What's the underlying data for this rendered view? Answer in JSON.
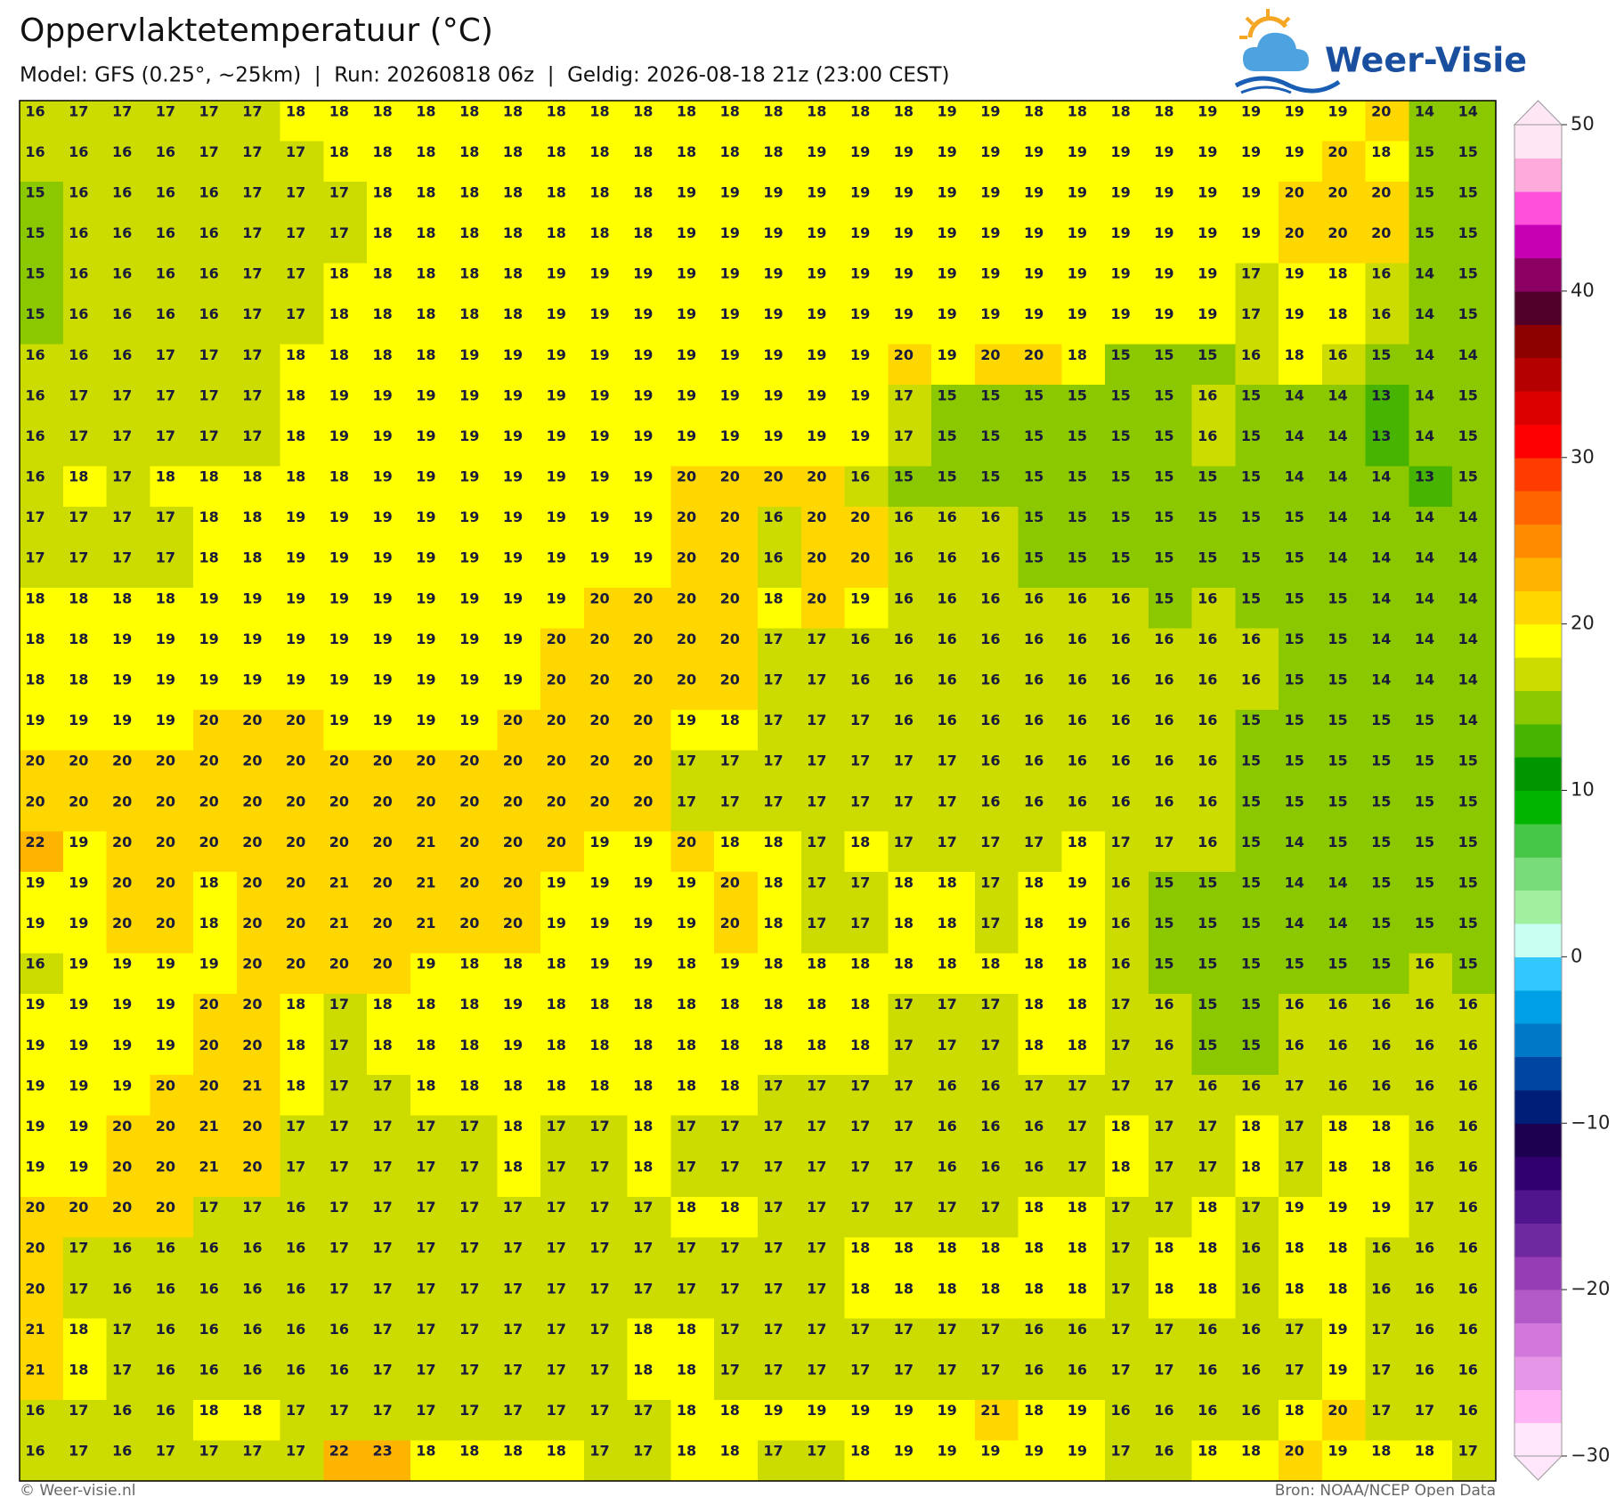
{
  "header": {
    "title": "Oppervlaktetemperatuur (°C)",
    "subtitle": "Model: GFS (0.25°, ~25km)  |  Run: 20260818 06z  |  Geldig: 2026-08-18 21z (23:00 CEST)",
    "logo": "Weer-Visie"
  },
  "map": {
    "rows": [
      [
        16,
        17,
        17,
        17,
        17,
        17,
        18,
        18,
        18,
        18,
        18,
        18,
        18,
        18,
        18,
        18,
        18,
        18,
        18,
        18,
        18,
        19,
        19,
        18,
        18,
        18,
        18,
        19,
        19,
        19,
        19,
        20,
        14,
        14
      ],
      [
        16,
        16,
        16,
        16,
        17,
        17,
        17,
        18,
        18,
        18,
        18,
        18,
        18,
        18,
        18,
        18,
        18,
        18,
        19,
        19,
        19,
        19,
        19,
        19,
        19,
        19,
        19,
        19,
        19,
        19,
        20,
        18,
        15,
        15
      ],
      [
        15,
        16,
        16,
        16,
        16,
        17,
        17,
        17,
        18,
        18,
        18,
        18,
        18,
        18,
        18,
        19,
        19,
        19,
        19,
        19,
        19,
        19,
        19,
        19,
        19,
        19,
        19,
        19,
        19,
        20,
        20,
        20,
        15,
        15
      ],
      [
        15,
        16,
        16,
        16,
        16,
        17,
        17,
        17,
        18,
        18,
        18,
        18,
        18,
        18,
        18,
        19,
        19,
        19,
        19,
        19,
        19,
        19,
        19,
        19,
        19,
        19,
        19,
        19,
        19,
        20,
        20,
        20,
        15,
        15
      ],
      [
        15,
        16,
        16,
        16,
        16,
        17,
        17,
        18,
        18,
        18,
        18,
        18,
        19,
        19,
        19,
        19,
        19,
        19,
        19,
        19,
        19,
        19,
        19,
        19,
        19,
        19,
        19,
        19,
        17,
        19,
        18,
        16,
        14,
        15
      ],
      [
        15,
        16,
        16,
        16,
        16,
        17,
        17,
        18,
        18,
        18,
        18,
        18,
        19,
        19,
        19,
        19,
        19,
        19,
        19,
        19,
        19,
        19,
        19,
        19,
        19,
        19,
        19,
        19,
        17,
        19,
        18,
        16,
        14,
        15
      ],
      [
        16,
        16,
        16,
        17,
        17,
        17,
        18,
        18,
        18,
        18,
        19,
        19,
        19,
        19,
        19,
        19,
        19,
        19,
        19,
        19,
        20,
        19,
        20,
        20,
        18,
        15,
        15,
        15,
        16,
        18,
        16,
        15,
        14,
        14
      ],
      [
        16,
        17,
        17,
        17,
        17,
        17,
        18,
        19,
        19,
        19,
        19,
        19,
        19,
        19,
        19,
        19,
        19,
        19,
        19,
        19,
        17,
        15,
        15,
        15,
        15,
        15,
        15,
        16,
        15,
        14,
        14,
        13,
        14,
        15
      ],
      [
        16,
        17,
        17,
        17,
        17,
        17,
        18,
        19,
        19,
        19,
        19,
        19,
        19,
        19,
        19,
        19,
        19,
        19,
        19,
        19,
        17,
        15,
        15,
        15,
        15,
        15,
        15,
        16,
        15,
        14,
        14,
        13,
        14,
        15
      ],
      [
        16,
        18,
        17,
        18,
        18,
        18,
        18,
        18,
        19,
        19,
        19,
        19,
        19,
        19,
        19,
        20,
        20,
        20,
        20,
        16,
        15,
        15,
        15,
        15,
        15,
        15,
        15,
        15,
        15,
        14,
        14,
        14,
        13,
        15
      ],
      [
        17,
        17,
        17,
        17,
        18,
        18,
        19,
        19,
        19,
        19,
        19,
        19,
        19,
        19,
        19,
        20,
        20,
        16,
        20,
        20,
        16,
        16,
        16,
        15,
        15,
        15,
        15,
        15,
        15,
        15,
        14,
        14,
        14,
        14
      ],
      [
        17,
        17,
        17,
        17,
        18,
        18,
        19,
        19,
        19,
        19,
        19,
        19,
        19,
        19,
        19,
        20,
        20,
        16,
        20,
        20,
        16,
        16,
        16,
        15,
        15,
        15,
        15,
        15,
        15,
        15,
        14,
        14,
        14,
        14
      ],
      [
        18,
        18,
        18,
        18,
        19,
        19,
        19,
        19,
        19,
        19,
        19,
        19,
        19,
        20,
        20,
        20,
        20,
        18,
        20,
        19,
        16,
        16,
        16,
        16,
        16,
        16,
        15,
        16,
        15,
        15,
        15,
        14,
        14,
        14
      ],
      [
        18,
        18,
        19,
        19,
        19,
        19,
        19,
        19,
        19,
        19,
        19,
        19,
        20,
        20,
        20,
        20,
        20,
        17,
        17,
        16,
        16,
        16,
        16,
        16,
        16,
        16,
        16,
        16,
        16,
        15,
        15,
        14,
        14,
        14
      ],
      [
        18,
        18,
        19,
        19,
        19,
        19,
        19,
        19,
        19,
        19,
        19,
        19,
        20,
        20,
        20,
        20,
        20,
        17,
        17,
        16,
        16,
        16,
        16,
        16,
        16,
        16,
        16,
        16,
        16,
        15,
        15,
        14,
        14,
        14
      ],
      [
        19,
        19,
        19,
        19,
        20,
        20,
        20,
        19,
        19,
        19,
        19,
        20,
        20,
        20,
        20,
        19,
        18,
        17,
        17,
        17,
        16,
        16,
        16,
        16,
        16,
        16,
        16,
        16,
        15,
        15,
        15,
        15,
        15,
        14
      ],
      [
        20,
        20,
        20,
        20,
        20,
        20,
        20,
        20,
        20,
        20,
        20,
        20,
        20,
        20,
        20,
        17,
        17,
        17,
        17,
        17,
        17,
        17,
        16,
        16,
        16,
        16,
        16,
        16,
        15,
        15,
        15,
        15,
        15,
        15
      ],
      [
        20,
        20,
        20,
        20,
        20,
        20,
        20,
        20,
        20,
        20,
        20,
        20,
        20,
        20,
        20,
        17,
        17,
        17,
        17,
        17,
        17,
        17,
        16,
        16,
        16,
        16,
        16,
        16,
        15,
        15,
        15,
        15,
        15,
        15
      ],
      [
        22,
        19,
        20,
        20,
        20,
        20,
        20,
        20,
        20,
        21,
        20,
        20,
        20,
        19,
        19,
        20,
        18,
        18,
        17,
        18,
        17,
        17,
        17,
        17,
        18,
        17,
        17,
        16,
        15,
        14,
        15,
        15,
        15,
        15
      ],
      [
        19,
        19,
        20,
        20,
        18,
        20,
        20,
        21,
        20,
        21,
        20,
        20,
        19,
        19,
        19,
        19,
        20,
        18,
        17,
        17,
        18,
        18,
        17,
        18,
        19,
        16,
        15,
        15,
        15,
        14,
        14,
        15,
        15,
        15
      ],
      [
        19,
        19,
        20,
        20,
        18,
        20,
        20,
        21,
        20,
        21,
        20,
        20,
        19,
        19,
        19,
        19,
        20,
        18,
        17,
        17,
        18,
        18,
        17,
        18,
        19,
        16,
        15,
        15,
        15,
        14,
        14,
        15,
        15,
        15
      ],
      [
        16,
        19,
        19,
        19,
        19,
        20,
        20,
        20,
        20,
        19,
        18,
        18,
        18,
        19,
        19,
        18,
        19,
        18,
        18,
        18,
        18,
        18,
        18,
        18,
        18,
        16,
        15,
        15,
        15,
        15,
        15,
        15,
        16,
        15
      ],
      [
        19,
        19,
        19,
        19,
        20,
        20,
        18,
        17,
        18,
        18,
        18,
        19,
        18,
        18,
        18,
        18,
        18,
        18,
        18,
        18,
        17,
        17,
        17,
        18,
        18,
        17,
        16,
        15,
        15,
        16,
        16,
        16,
        16,
        16
      ],
      [
        19,
        19,
        19,
        19,
        20,
        20,
        18,
        17,
        18,
        18,
        18,
        19,
        18,
        18,
        18,
        18,
        18,
        18,
        18,
        18,
        17,
        17,
        17,
        18,
        18,
        17,
        16,
        15,
        15,
        16,
        16,
        16,
        16,
        16
      ],
      [
        19,
        19,
        19,
        20,
        20,
        21,
        18,
        17,
        17,
        18,
        18,
        18,
        18,
        18,
        18,
        18,
        18,
        17,
        17,
        17,
        17,
        16,
        16,
        17,
        17,
        17,
        17,
        16,
        16,
        17,
        16,
        16,
        16,
        16
      ],
      [
        19,
        19,
        20,
        20,
        21,
        20,
        17,
        17,
        17,
        17,
        17,
        18,
        17,
        17,
        18,
        17,
        17,
        17,
        17,
        17,
        17,
        16,
        16,
        16,
        17,
        18,
        17,
        17,
        18,
        17,
        18,
        18,
        16,
        16
      ],
      [
        19,
        19,
        20,
        20,
        21,
        20,
        17,
        17,
        17,
        17,
        17,
        18,
        17,
        17,
        18,
        17,
        17,
        17,
        17,
        17,
        17,
        16,
        16,
        16,
        17,
        18,
        17,
        17,
        18,
        17,
        18,
        18,
        16,
        16
      ],
      [
        20,
        20,
        20,
        20,
        17,
        17,
        16,
        17,
        17,
        17,
        17,
        17,
        17,
        17,
        17,
        18,
        18,
        17,
        17,
        17,
        17,
        17,
        17,
        18,
        18,
        17,
        17,
        18,
        17,
        19,
        19,
        19,
        17,
        16
      ],
      [
        20,
        17,
        16,
        16,
        16,
        16,
        16,
        17,
        17,
        17,
        17,
        17,
        17,
        17,
        17,
        17,
        17,
        17,
        17,
        18,
        18,
        18,
        18,
        18,
        18,
        17,
        18,
        18,
        16,
        18,
        18,
        16,
        16,
        16
      ],
      [
        20,
        17,
        16,
        16,
        16,
        16,
        16,
        17,
        17,
        17,
        17,
        17,
        17,
        17,
        17,
        17,
        17,
        17,
        17,
        18,
        18,
        18,
        18,
        18,
        18,
        17,
        18,
        18,
        16,
        18,
        18,
        16,
        16,
        16
      ],
      [
        21,
        18,
        17,
        16,
        16,
        16,
        16,
        16,
        17,
        17,
        17,
        17,
        17,
        17,
        18,
        18,
        17,
        17,
        17,
        17,
        17,
        17,
        17,
        16,
        16,
        17,
        17,
        16,
        16,
        17,
        19,
        17,
        16,
        16
      ],
      [
        21,
        18,
        17,
        16,
        16,
        16,
        16,
        16,
        17,
        17,
        17,
        17,
        17,
        17,
        18,
        18,
        17,
        17,
        17,
        17,
        17,
        17,
        17,
        16,
        16,
        17,
        17,
        16,
        16,
        17,
        19,
        17,
        16,
        16
      ],
      [
        16,
        17,
        16,
        16,
        18,
        18,
        17,
        17,
        17,
        17,
        17,
        17,
        17,
        17,
        17,
        18,
        18,
        19,
        19,
        19,
        19,
        19,
        21,
        18,
        19,
        16,
        16,
        16,
        16,
        18,
        20,
        17,
        17,
        16
      ],
      [
        16,
        17,
        16,
        17,
        17,
        17,
        17,
        22,
        23,
        18,
        18,
        18,
        18,
        17,
        17,
        18,
        18,
        17,
        17,
        18,
        19,
        19,
        19,
        19,
        19,
        17,
        16,
        18,
        18,
        20,
        19,
        18,
        18,
        17
      ]
    ]
  },
  "colorbar": {
    "clim": [
      -30,
      50
    ],
    "colors": [
      "#ffe6fa",
      "#ffb4f5",
      "#e696e6",
      "#d278dc",
      "#b45ac8",
      "#963cb4",
      "#6e28a0",
      "#50148c",
      "#32006e",
      "#1e0050",
      "#001e78",
      "#0046a0",
      "#0078c8",
      "#00a0e6",
      "#32c8ff",
      "#c8fff0",
      "#a0f0a0",
      "#78dc78",
      "#46c846",
      "#00b400",
      "#009600",
      "#46b400",
      "#8cc800",
      "#cddc00",
      "#ffff00",
      "#ffd700",
      "#ffb400",
      "#ff8c00",
      "#ff6400",
      "#ff3c00",
      "#ff0000",
      "#dc0000",
      "#b40000",
      "#8c0000",
      "#500028",
      "#8c0064",
      "#c800b4",
      "#ff50dc",
      "#ffaadc",
      "#ffe6f5"
    ],
    "ticks": [
      50,
      40,
      30,
      20,
      10,
      0,
      {
        "value": -10,
        "label": "−10"
      },
      {
        "value": -20,
        "label": "−20"
      },
      {
        "value": -30,
        "label": "−30"
      }
    ]
  },
  "footer": {
    "left": "© Weer-visie.nl",
    "right": "Bron: NOAA/NCEP Open Data"
  }
}
